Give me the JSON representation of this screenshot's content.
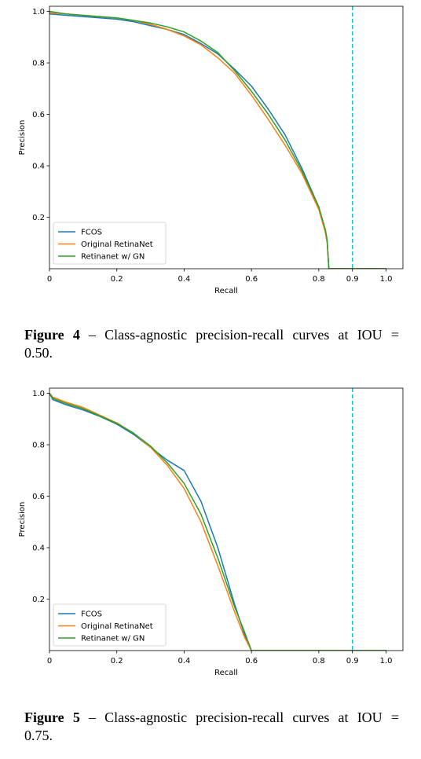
{
  "figures": [
    {
      "caption_label": "Figure 4",
      "caption_text": "– Class-agnostic precision-recall curves at IOU =",
      "caption_text_2": "0.50.",
      "chart_data": {
        "type": "line",
        "xlabel": "Recall",
        "ylabel": "Precision",
        "xlim": [
          0,
          1.05
        ],
        "ylim": [
          0,
          1.02
        ],
        "xticks": [
          0,
          0.2,
          0.4,
          0.6,
          0.8,
          0.9,
          1.0
        ],
        "xtick_labels": [
          "0",
          "0.2",
          "0.4",
          "0.6",
          "0.8",
          "0.9",
          "1.0"
        ],
        "yticks": [
          0.2,
          0.4,
          0.6,
          0.8,
          1.0
        ],
        "ytick_labels": [
          "0.2",
          "0.4",
          "0.6",
          "0.8",
          "1.0"
        ],
        "vline": {
          "x": 0.9,
          "color": "#17becf",
          "style": "dashed"
        },
        "legend_position": "lower-left",
        "grid": false,
        "series": [
          {
            "name": "FCOS",
            "color": "#1f77b4",
            "x": [
              0,
              0.05,
              0.1,
              0.15,
              0.2,
              0.25,
              0.3,
              0.35,
              0.4,
              0.45,
              0.5,
              0.55,
              0.6,
              0.65,
              0.7,
              0.75,
              0.8,
              0.82,
              0.825,
              0.83,
              1.0
            ],
            "y": [
              0.99,
              0.985,
              0.98,
              0.975,
              0.97,
              0.96,
              0.945,
              0.93,
              0.91,
              0.875,
              0.835,
              0.775,
              0.71,
              0.62,
              0.52,
              0.39,
              0.24,
              0.14,
              0.1,
              0.0,
              0.0
            ]
          },
          {
            "name": "Original RetinaNet",
            "color": "#ff7f0e",
            "x": [
              0,
              0.05,
              0.1,
              0.15,
              0.2,
              0.25,
              0.3,
              0.35,
              0.4,
              0.45,
              0.5,
              0.55,
              0.6,
              0.65,
              0.7,
              0.75,
              0.8,
              0.82,
              0.825,
              0.83,
              1.0
            ],
            "y": [
              0.995,
              0.99,
              0.985,
              0.98,
              0.975,
              0.965,
              0.95,
              0.93,
              0.905,
              0.87,
              0.82,
              0.76,
              0.675,
              0.58,
              0.48,
              0.37,
              0.23,
              0.14,
              0.1,
              0.0,
              0.0
            ]
          },
          {
            "name": "Retinanet w/ GN",
            "color": "#2ca02c",
            "x": [
              0,
              0.05,
              0.1,
              0.15,
              0.2,
              0.25,
              0.3,
              0.35,
              0.4,
              0.45,
              0.5,
              0.55,
              0.6,
              0.65,
              0.7,
              0.75,
              0.8,
              0.82,
              0.825,
              0.83,
              1.0
            ],
            "y": [
              1.0,
              0.99,
              0.985,
              0.98,
              0.975,
              0.965,
              0.955,
              0.94,
              0.92,
              0.885,
              0.84,
              0.77,
              0.69,
              0.6,
              0.5,
              0.38,
              0.24,
              0.15,
              0.11,
              0.0,
              0.0
            ]
          }
        ]
      }
    },
    {
      "caption_label": "Figure 5",
      "caption_text": "– Class-agnostic precision-recall curves at IOU =",
      "caption_text_2": "0.75.",
      "chart_data": {
        "type": "line",
        "xlabel": "Recall",
        "ylabel": "Precision",
        "xlim": [
          0,
          1.05
        ],
        "ylim": [
          0,
          1.02
        ],
        "xticks": [
          0,
          0.2,
          0.4,
          0.6,
          0.8,
          0.9,
          1.0
        ],
        "xtick_labels": [
          "0",
          "0.2",
          "0.4",
          "0.6",
          "0.8",
          "0.9",
          "1.0"
        ],
        "yticks": [
          0.2,
          0.4,
          0.6,
          0.8,
          1.0
        ],
        "ytick_labels": [
          "0.2",
          "0.4",
          "0.6",
          "0.8",
          "1.0"
        ],
        "vline": {
          "x": 0.9,
          "color": "#17becf",
          "style": "dashed"
        },
        "legend_position": "lower-left",
        "grid": false,
        "series": [
          {
            "name": "FCOS",
            "color": "#1f77b4",
            "x": [
              0,
              0.01,
              0.05,
              0.1,
              0.15,
              0.2,
              0.25,
              0.3,
              0.35,
              0.4,
              0.45,
              0.5,
              0.55,
              0.58,
              0.6,
              1.0
            ],
            "y": [
              1.0,
              0.975,
              0.955,
              0.935,
              0.91,
              0.88,
              0.84,
              0.79,
              0.74,
              0.7,
              0.58,
              0.4,
              0.18,
              0.06,
              0.0,
              0.0
            ]
          },
          {
            "name": "Original RetinaNet",
            "color": "#ff7f0e",
            "x": [
              0,
              0.01,
              0.05,
              0.1,
              0.15,
              0.2,
              0.25,
              0.3,
              0.35,
              0.4,
              0.45,
              0.5,
              0.55,
              0.58,
              0.6,
              1.0
            ],
            "y": [
              1.0,
              0.985,
              0.965,
              0.945,
              0.915,
              0.885,
              0.845,
              0.79,
              0.72,
              0.63,
              0.5,
              0.33,
              0.15,
              0.05,
              0.0,
              0.0
            ]
          },
          {
            "name": "Retinanet w/ GN",
            "color": "#2ca02c",
            "x": [
              0,
              0.01,
              0.05,
              0.1,
              0.15,
              0.2,
              0.25,
              0.3,
              0.35,
              0.4,
              0.45,
              0.5,
              0.55,
              0.58,
              0.6,
              1.0
            ],
            "y": [
              1.0,
              0.98,
              0.96,
              0.94,
              0.912,
              0.883,
              0.845,
              0.795,
              0.73,
              0.65,
              0.53,
              0.36,
              0.17,
              0.07,
              0.0,
              0.0
            ]
          }
        ]
      }
    }
  ]
}
